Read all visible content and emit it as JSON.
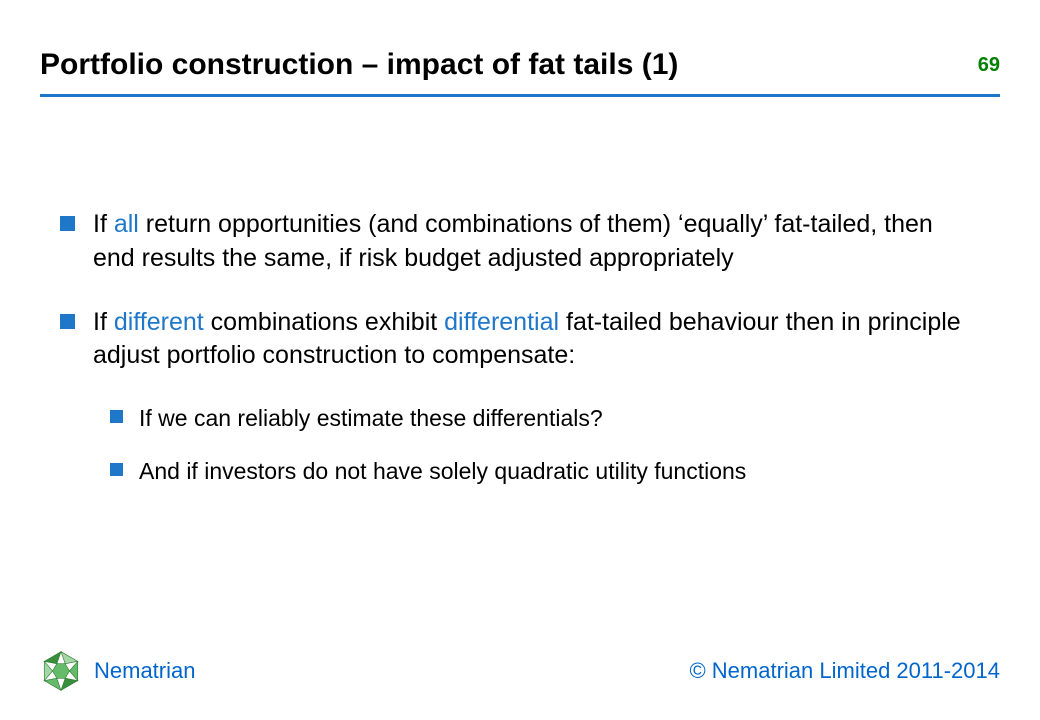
{
  "header": {
    "title": "Portfolio construction – impact of fat tails (1)",
    "page_number": "69",
    "rule_color": "#1f77c9",
    "title_color": "#000000",
    "page_number_color": "#008000"
  },
  "colors": {
    "bullet": "#1f77c9",
    "highlight": "#1f77c9",
    "text": "#000000",
    "brand": "#0066cc"
  },
  "bullets": [
    {
      "segments": [
        {
          "text": "If ",
          "highlight": false
        },
        {
          "text": "all",
          "highlight": true
        },
        {
          "text": " return opportunities (and combinations of them) ‘equally’ fat-tailed, then end results the same, if risk budget adjusted appropriately",
          "highlight": false
        }
      ],
      "sub": []
    },
    {
      "segments": [
        {
          "text": "If ",
          "highlight": false
        },
        {
          "text": "different",
          "highlight": true
        },
        {
          "text": " combinations exhibit ",
          "highlight": false
        },
        {
          "text": "differential",
          "highlight": true
        },
        {
          "text": " fat-tailed behaviour then in principle adjust portfolio construction to compensate:",
          "highlight": false
        }
      ],
      "sub": [
        {
          "text": "If we can reliably estimate these differentials?"
        },
        {
          "text": "And if investors do not have solely quadratic utility functions"
        }
      ]
    }
  ],
  "footer": {
    "brand": "Nematrian",
    "copyright": "© Nematrian Limited 2011-2014",
    "logo_colors": {
      "stroke": "#2e7d32",
      "fill_light": "#a5d6a7",
      "fill_mid": "#66bb6a",
      "fill_dark": "#388e3c"
    }
  }
}
